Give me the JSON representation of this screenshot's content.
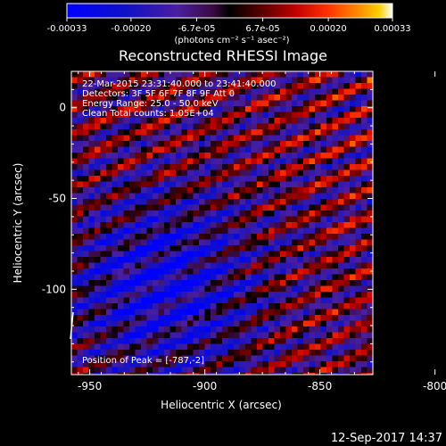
{
  "chart_data": {
    "type": "heatmap",
    "title": "Reconstructed RHESSI Image",
    "xlabel": "Heliocentric X (arcsec)",
    "ylabel": "Heliocentric Y (arcsec)",
    "xlim": [
      -958,
      -827
    ],
    "ylim": [
      -147,
      20
    ],
    "xticks": [
      {
        "value": -950,
        "label": "-950"
      },
      {
        "value": -900,
        "label": "-900"
      },
      {
        "value": -850,
        "label": "-850"
      },
      {
        "value": -800,
        "label": "-800"
      }
    ],
    "yticks": [
      {
        "value": 0,
        "label": "0"
      },
      {
        "value": -50,
        "label": "-50"
      },
      {
        "value": -100,
        "label": "-100"
      }
    ],
    "colorbar": {
      "range": [
        -0.00033,
        0.00033
      ],
      "ticks": [
        {
          "value": -0.00033,
          "label": "-0.00033"
        },
        {
          "value": -0.0002,
          "label": "-0.00020"
        },
        {
          "value": -6.7e-05,
          "label": "-6.7e-05"
        },
        {
          "value": 6.7e-05,
          "label": "6.7e-05"
        },
        {
          "value": 0.0002,
          "label": "0.00020"
        },
        {
          "value": 0.00033,
          "label": "0.00033"
        }
      ],
      "units_label": "(photons cm⁻² s⁻¹ asec⁻²)"
    },
    "peak": [
      -787,
      -2
    ],
    "annotations": [
      "22-Mar-2015 23:31:40.000 to 23:41:40.000",
      "Detectors: 3F 5F 6F 7F 8F 9F  Att 0",
      "Energy Range: 25.0 - 50.0 keV",
      "Clean    Total counts: 1.05E+04"
    ],
    "peak_label": "Position of Peak = [-787,-2]",
    "footer": "12-Sep-2017 14:37"
  }
}
